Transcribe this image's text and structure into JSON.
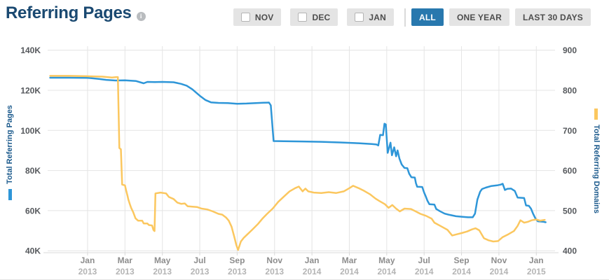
{
  "header": {
    "title": "Referring Pages",
    "info_icon": "i"
  },
  "controls": {
    "month_toggles": [
      {
        "label": "NOV",
        "checked": false
      },
      {
        "label": "DEC",
        "checked": false
      },
      {
        "label": "JAN",
        "checked": false
      }
    ],
    "range_buttons": [
      {
        "label": "ALL",
        "active": true
      },
      {
        "label": "ONE YEAR",
        "active": false
      },
      {
        "label": "LAST 30 DAYS",
        "active": false
      }
    ]
  },
  "colors": {
    "pages_blue": "#2e96d8",
    "domains_yellow": "#fbc75f",
    "grid": "#e4e4e4",
    "axis_line": "#d8d8d8",
    "tick_text": "#55585c",
    "month_text": "#8d8d8d",
    "year_text": "#b4b4b4",
    "axis_title": "#1d5b8d"
  },
  "chart_data": {
    "type": "line",
    "title": "Referring Pages",
    "x_unit": "months since Nov 2012",
    "x_range": [
      0,
      27
    ],
    "grid": true,
    "left_axis": {
      "title": "Total Referring Pages",
      "color": "#2e96d8",
      "range": [
        40000,
        140000
      ],
      "ticks": [
        {
          "value": 140,
          "label": "140K"
        },
        {
          "value": 120,
          "label": "120K"
        },
        {
          "value": 100,
          "label": "100K"
        },
        {
          "value": 80,
          "label": "80K"
        },
        {
          "value": 60,
          "label": "60K"
        },
        {
          "value": 40,
          "label": "40K"
        }
      ]
    },
    "right_axis": {
      "title": "Total Referring Domains",
      "color": "#fbc75f",
      "range": [
        400,
        900
      ],
      "ticks": [
        {
          "value": 900,
          "label": "900"
        },
        {
          "value": 800,
          "label": "800"
        },
        {
          "value": 700,
          "label": "700"
        },
        {
          "value": 600,
          "label": "600"
        },
        {
          "value": 500,
          "label": "500"
        },
        {
          "value": 400,
          "label": "400"
        }
      ]
    },
    "x_ticks": [
      {
        "m": 2,
        "month": "Jan",
        "year": "2013"
      },
      {
        "m": 4,
        "month": "Mar",
        "year": "2013"
      },
      {
        "m": 6,
        "month": "May",
        "year": "2013"
      },
      {
        "m": 8,
        "month": "Jul",
        "year": "2013"
      },
      {
        "m": 10,
        "month": "Sep",
        "year": "2013"
      },
      {
        "m": 12,
        "month": "Nov",
        "year": "2013"
      },
      {
        "m": 14,
        "month": "Jan",
        "year": "2014"
      },
      {
        "m": 16,
        "month": "Mar",
        "year": "2014"
      },
      {
        "m": 18,
        "month": "May",
        "year": "2014"
      },
      {
        "m": 20,
        "month": "Jul",
        "year": "2014"
      },
      {
        "m": 22,
        "month": "Sep",
        "year": "2014"
      },
      {
        "m": 24,
        "month": "Nov",
        "year": "2014"
      },
      {
        "m": 26,
        "month": "Jan",
        "year": "2015"
      }
    ],
    "series": [
      {
        "name": "Total Referring Pages",
        "axis": "left",
        "unit": "thousands",
        "color": "#2e96d8",
        "points": [
          [
            0,
            126.3
          ],
          [
            1,
            126.3
          ],
          [
            2,
            126.2
          ],
          [
            2.6,
            125.7
          ],
          [
            3,
            125.2
          ],
          [
            3.5,
            124.9
          ],
          [
            4,
            125.0
          ],
          [
            4.6,
            124.6
          ],
          [
            5,
            123.5
          ],
          [
            5.2,
            124.2
          ],
          [
            5.6,
            124.1
          ],
          [
            6,
            124.2
          ],
          [
            6.6,
            124.0
          ],
          [
            7,
            123.2
          ],
          [
            7.3,
            122.3
          ],
          [
            7.6,
            120.5
          ],
          [
            8,
            117.3
          ],
          [
            8.3,
            115.2
          ],
          [
            8.6,
            114.0
          ],
          [
            9,
            113.7
          ],
          [
            9.5,
            113.6
          ],
          [
            10,
            113.3
          ],
          [
            10.5,
            113.4
          ],
          [
            11,
            113.6
          ],
          [
            11.4,
            113.8
          ],
          [
            11.7,
            113.9
          ],
          [
            11.8,
            112.5
          ],
          [
            11.95,
            94.7
          ],
          [
            12.5,
            94.6
          ],
          [
            13.5,
            94.5
          ],
          [
            14.5,
            94.3
          ],
          [
            15.5,
            94.0
          ],
          [
            16.5,
            93.6
          ],
          [
            17.2,
            93.2
          ],
          [
            17.45,
            93.0
          ],
          [
            17.55,
            92.5
          ],
          [
            17.65,
            97.8
          ],
          [
            17.8,
            97.6
          ],
          [
            17.88,
            103.3
          ],
          [
            17.95,
            103.0
          ],
          [
            18.05,
            88.8
          ],
          [
            18.2,
            93.9
          ],
          [
            18.28,
            87.6
          ],
          [
            18.4,
            91.6
          ],
          [
            18.5,
            87.1
          ],
          [
            18.58,
            90.0
          ],
          [
            18.68,
            85.9
          ],
          [
            18.8,
            83.0
          ],
          [
            18.95,
            81.3
          ],
          [
            19.1,
            81.2
          ],
          [
            19.2,
            78.4
          ],
          [
            19.32,
            76.6
          ],
          [
            19.5,
            76.5
          ],
          [
            19.56,
            73.7
          ],
          [
            19.63,
            71.9
          ],
          [
            19.9,
            71.8
          ],
          [
            20.0,
            69.0
          ],
          [
            20.08,
            67.3
          ],
          [
            20.18,
            64.9
          ],
          [
            20.28,
            63.2
          ],
          [
            20.55,
            63.0
          ],
          [
            20.65,
            60.8
          ],
          [
            20.85,
            59.7
          ],
          [
            21.1,
            58.5
          ],
          [
            21.35,
            57.9
          ],
          [
            21.7,
            57.2
          ],
          [
            22.05,
            56.9
          ],
          [
            22.35,
            56.7
          ],
          [
            22.6,
            56.7
          ],
          [
            22.72,
            58.5
          ],
          [
            22.85,
            65.5
          ],
          [
            23.0,
            69.5
          ],
          [
            23.1,
            70.8
          ],
          [
            23.3,
            71.5
          ],
          [
            23.6,
            72.3
          ],
          [
            23.9,
            72.6
          ],
          [
            24.1,
            73.0
          ],
          [
            24.2,
            73.4
          ],
          [
            24.32,
            70.3
          ],
          [
            24.45,
            70.9
          ],
          [
            24.65,
            71.0
          ],
          [
            24.85,
            69.8
          ],
          [
            25.0,
            66.5
          ],
          [
            25.35,
            66.3
          ],
          [
            25.45,
            62.6
          ],
          [
            25.6,
            62.4
          ],
          [
            25.72,
            60.9
          ],
          [
            25.82,
            58.6
          ],
          [
            25.95,
            56.2
          ],
          [
            26.08,
            54.7
          ],
          [
            26.35,
            54.5
          ],
          [
            26.5,
            54.2
          ]
        ]
      },
      {
        "name": "Total Referring Domains",
        "axis": "right",
        "unit": "domains",
        "color": "#fbc75f",
        "points": [
          [
            0,
            836
          ],
          [
            1,
            836
          ],
          [
            2,
            835
          ],
          [
            2.8,
            834
          ],
          [
            3.3,
            832
          ],
          [
            3.55,
            833
          ],
          [
            3.62,
            833
          ],
          [
            3.7,
            656
          ],
          [
            3.78,
            653
          ],
          [
            3.85,
            565
          ],
          [
            4.0,
            563
          ],
          [
            4.06,
            551
          ],
          [
            4.14,
            536
          ],
          [
            4.18,
            528
          ],
          [
            4.26,
            516
          ],
          [
            4.33,
            507
          ],
          [
            4.44,
            496
          ],
          [
            4.56,
            481
          ],
          [
            4.7,
            475
          ],
          [
            4.92,
            475
          ],
          [
            5.0,
            468
          ],
          [
            5.2,
            468
          ],
          [
            5.28,
            464
          ],
          [
            5.45,
            463
          ],
          [
            5.52,
            452
          ],
          [
            5.58,
            449
          ],
          [
            5.63,
            543
          ],
          [
            5.9,
            545
          ],
          [
            6.2,
            543
          ],
          [
            6.35,
            534
          ],
          [
            6.6,
            529
          ],
          [
            6.8,
            520
          ],
          [
            7.0,
            517
          ],
          [
            7.2,
            518
          ],
          [
            7.35,
            511
          ],
          [
            7.6,
            510
          ],
          [
            7.85,
            509
          ],
          [
            8.1,
            505
          ],
          [
            8.4,
            503
          ],
          [
            8.7,
            498
          ],
          [
            9.0,
            492
          ],
          [
            9.2,
            490
          ],
          [
            9.4,
            483
          ],
          [
            9.55,
            475
          ],
          [
            9.7,
            460
          ],
          [
            9.85,
            434
          ],
          [
            9.95,
            415
          ],
          [
            10.05,
            402
          ],
          [
            10.2,
            423
          ],
          [
            10.35,
            432
          ],
          [
            10.55,
            441
          ],
          [
            10.8,
            452
          ],
          [
            11.1,
            466
          ],
          [
            11.35,
            480
          ],
          [
            11.6,
            492
          ],
          [
            11.9,
            505
          ],
          [
            12.2,
            522
          ],
          [
            12.5,
            535
          ],
          [
            12.8,
            548
          ],
          [
            13.1,
            556
          ],
          [
            13.3,
            560
          ],
          [
            13.5,
            548
          ],
          [
            13.65,
            555
          ],
          [
            13.8,
            548
          ],
          [
            14.1,
            545
          ],
          [
            14.5,
            544
          ],
          [
            14.9,
            546
          ],
          [
            15.3,
            544
          ],
          [
            15.7,
            548
          ],
          [
            16.0,
            556
          ],
          [
            16.2,
            562
          ],
          [
            16.5,
            556
          ],
          [
            16.8,
            549
          ],
          [
            17.1,
            541
          ],
          [
            17.4,
            530
          ],
          [
            17.6,
            524
          ],
          [
            17.9,
            516
          ],
          [
            18.1,
            507
          ],
          [
            18.3,
            514
          ],
          [
            18.5,
            505
          ],
          [
            18.7,
            498
          ],
          [
            18.95,
            505
          ],
          [
            19.3,
            504
          ],
          [
            19.55,
            498
          ],
          [
            19.8,
            492
          ],
          [
            20.1,
            487
          ],
          [
            20.4,
            480
          ],
          [
            20.55,
            470
          ],
          [
            20.9,
            461
          ],
          [
            21.25,
            452
          ],
          [
            21.5,
            438
          ],
          [
            21.75,
            441
          ],
          [
            22.0,
            444
          ],
          [
            22.3,
            448
          ],
          [
            22.55,
            453
          ],
          [
            22.75,
            456
          ],
          [
            22.95,
            451
          ],
          [
            23.2,
            431
          ],
          [
            23.45,
            426
          ],
          [
            23.7,
            423
          ],
          [
            23.95,
            424
          ],
          [
            24.2,
            434
          ],
          [
            24.5,
            441
          ],
          [
            24.8,
            449
          ],
          [
            25.0,
            462
          ],
          [
            25.15,
            476
          ],
          [
            25.35,
            470
          ],
          [
            25.55,
            472
          ],
          [
            25.75,
            476
          ],
          [
            26.0,
            478
          ],
          [
            26.2,
            475
          ],
          [
            26.45,
            477
          ]
        ]
      }
    ]
  }
}
